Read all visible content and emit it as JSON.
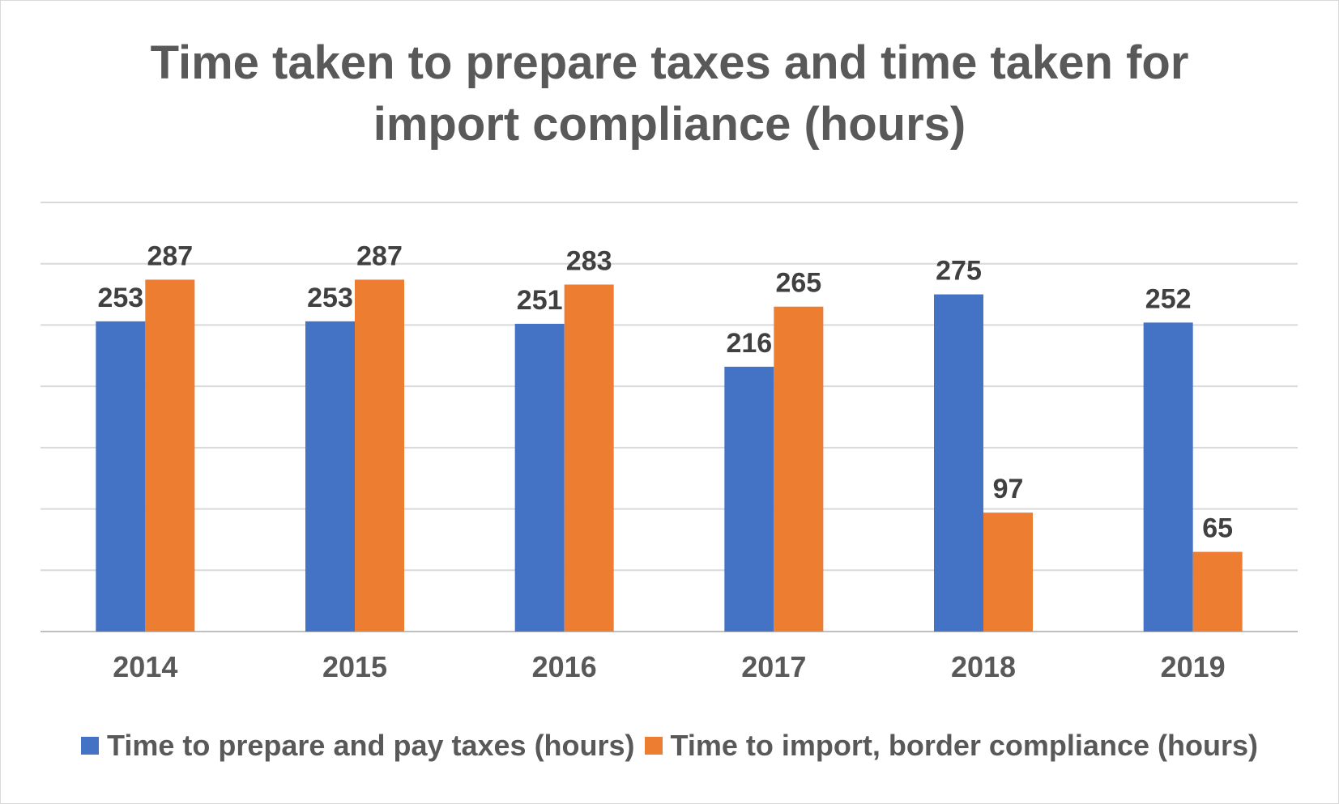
{
  "chart_data": {
    "type": "bar",
    "title_lines": [
      "Time taken to prepare taxes and time taken for",
      "import compliance (hours)"
    ],
    "categories": [
      "2014",
      "2015",
      "2016",
      "2017",
      "2018",
      "2019"
    ],
    "series": [
      {
        "name": "Time to prepare and pay taxes (hours)",
        "color": "#4472c4",
        "values": [
          253,
          253,
          251,
          216,
          275,
          252
        ]
      },
      {
        "name": "Time to import, border compliance (hours)",
        "color": "#ed7d31",
        "values": [
          287,
          287,
          283,
          265,
          97,
          65
        ]
      }
    ],
    "ylim": [
      0,
      350
    ],
    "ystep": 50,
    "grid": true,
    "y_axis_labels_shown": false,
    "data_labels": true,
    "legend_position": "bottom"
  }
}
